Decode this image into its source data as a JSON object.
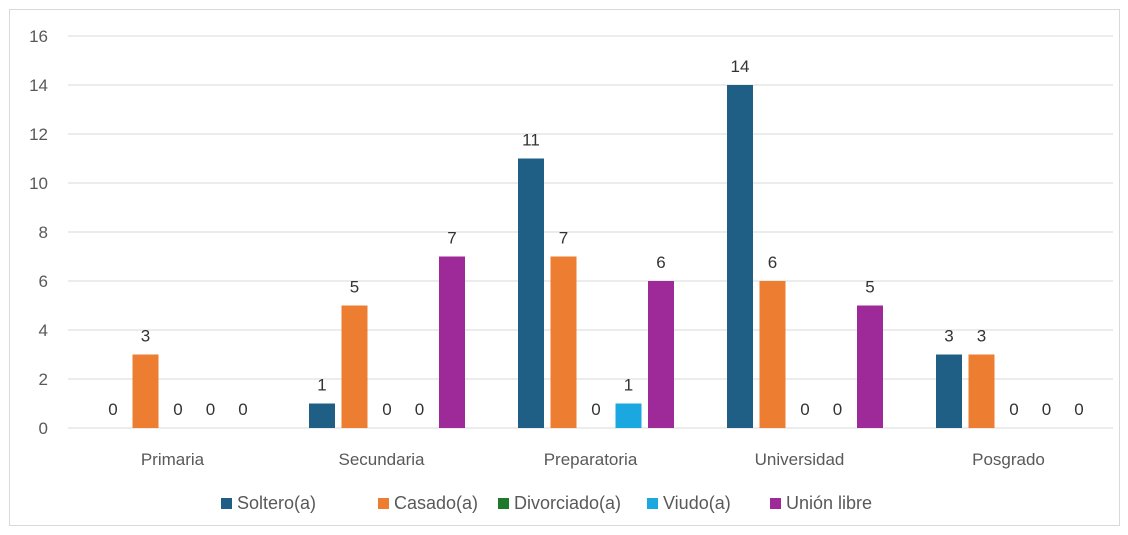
{
  "chart_data": {
    "type": "bar",
    "categories": [
      "Primaria",
      "Secundaria",
      "Preparatoria",
      "Universidad",
      "Posgrado"
    ],
    "series": [
      {
        "name": "Soltero(a)",
        "color": "#1f5f85",
        "values": [
          0,
          1,
          11,
          14,
          3
        ]
      },
      {
        "name": "Casado(a)",
        "color": "#ed7d31",
        "values": [
          3,
          5,
          7,
          6,
          3
        ]
      },
      {
        "name": "Divorciado(a)",
        "color": "#1e7a2a",
        "values": [
          0,
          0,
          0,
          0,
          0
        ]
      },
      {
        "name": "Viudo(a)",
        "color": "#1ba7e0",
        "values": [
          0,
          0,
          1,
          0,
          0
        ]
      },
      {
        "name": "Unión libre",
        "color": "#9e2a9a",
        "values": [
          0,
          7,
          6,
          5,
          0
        ]
      }
    ],
    "data_labels": [
      [
        "0",
        "3",
        "0",
        "0",
        "0"
      ],
      [
        "1",
        "5",
        "0",
        "0",
        "7"
      ],
      [
        "11",
        "7",
        "0",
        "1",
        "6"
      ],
      [
        "14",
        "6",
        "0",
        "0",
        "5"
      ],
      [
        "3",
        "3",
        "0",
        "0",
        "0"
      ]
    ],
    "yticks": [
      "0",
      "2",
      "4",
      "6",
      "8",
      "10",
      "12",
      "14",
      "16"
    ],
    "ylim": [
      0,
      16
    ],
    "grid": true,
    "legend_position": "bottom",
    "title": "",
    "xlabel": "",
    "ylabel": ""
  }
}
